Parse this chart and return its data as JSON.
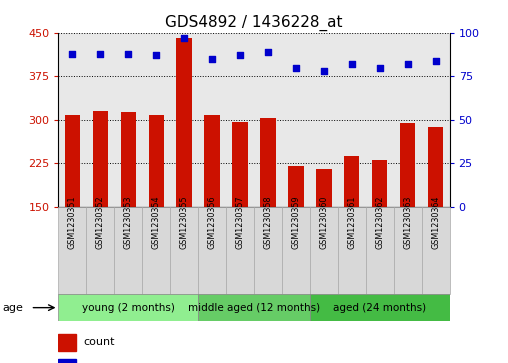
{
  "title": "GDS4892 / 1436228_at",
  "samples": [
    "GSM1230351",
    "GSM1230352",
    "GSM1230353",
    "GSM1230354",
    "GSM1230355",
    "GSM1230356",
    "GSM1230357",
    "GSM1230358",
    "GSM1230359",
    "GSM1230360",
    "GSM1230361",
    "GSM1230362",
    "GSM1230363",
    "GSM1230364"
  ],
  "counts": [
    308,
    315,
    313,
    308,
    440,
    308,
    297,
    303,
    220,
    215,
    238,
    230,
    295,
    287
  ],
  "percentiles": [
    88,
    88,
    88,
    87,
    97,
    85,
    87,
    89,
    80,
    78,
    82,
    80,
    82,
    84
  ],
  "groups": [
    {
      "label": "young (2 months)",
      "start": 0,
      "end": 5,
      "color": "#90ee90"
    },
    {
      "label": "middle aged (12 months)",
      "start": 5,
      "end": 9,
      "color": "#66cc66"
    },
    {
      "label": "aged (24 months)",
      "start": 9,
      "end": 14,
      "color": "#44bb44"
    }
  ],
  "ylim_left": [
    150,
    450
  ],
  "ylim_right": [
    0,
    100
  ],
  "yticks_left": [
    150,
    225,
    300,
    375,
    450
  ],
  "yticks_right": [
    0,
    25,
    50,
    75,
    100
  ],
  "bar_color": "#cc1100",
  "dot_color": "#0000cc",
  "background_color": "#ffffff",
  "plot_bg_color": "#e8e8e8",
  "title_fontsize": 11,
  "tick_fontsize": 8,
  "label_fontsize": 8,
  "legend_fontsize": 8
}
